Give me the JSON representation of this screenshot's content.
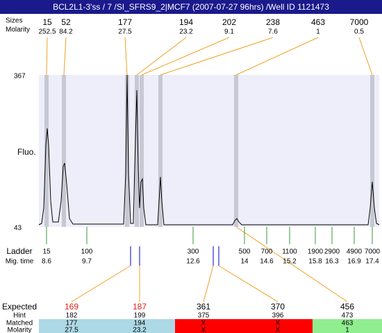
{
  "title": "BCL2L1-3'ss / 7 /SI_SFRS9_2|MCF7 (2007-07-27 96hrs) /Well ID 1121473",
  "top_rows": {
    "size_label": "Sizes",
    "molarity_label": "Molarity"
  },
  "peaks": [
    {
      "size": "15",
      "molarity": "252.5"
    },
    {
      "size": "52",
      "molarity": "84.2"
    },
    {
      "size": "177",
      "molarity": "27.5"
    },
    {
      "size": "194",
      "molarity": "23.2"
    },
    {
      "size": "202",
      "molarity": "9.1"
    },
    {
      "size": "238",
      "molarity": "7.6"
    },
    {
      "size": "463",
      "molarity": "1"
    },
    {
      "size": "7000",
      "molarity": "0.5"
    }
  ],
  "y_axis": {
    "label": "Fluo.",
    "top": "367",
    "bottom": "43"
  },
  "ladder": {
    "label": "Ladder",
    "time_label": "Mig. time",
    "entries": [
      {
        "size": "15",
        "time": "8.6"
      },
      {
        "size": "100",
        "time": "9.7"
      },
      {
        "size": "300",
        "time": "12.6"
      },
      {
        "size": "500",
        "time": "14"
      },
      {
        "size": "700",
        "time": "14.6"
      },
      {
        "size": "1100",
        "time": "15.2"
      },
      {
        "size": "1900",
        "time": "15.8"
      },
      {
        "size": "2900",
        "time": "16.3"
      },
      {
        "size": "4900",
        "time": "16.9"
      },
      {
        "size": "7000",
        "time": "17.4"
      }
    ]
  },
  "table": {
    "row_labels": [
      "Expected",
      "Hint",
      "Matched",
      "Molarity"
    ],
    "columns": [
      {
        "expected": "169",
        "hint": "182",
        "matched": "177",
        "molarity": "27.5",
        "expected_color": "#e02020",
        "color": "#add8e6"
      },
      {
        "expected": "187",
        "hint": "199",
        "matched": "194",
        "molarity": "23.2",
        "expected_color": "#e02020",
        "color": "#add8e6"
      },
      {
        "expected": "361",
        "hint": "375",
        "matched": "X",
        "molarity": "X",
        "expected_color": "#000000",
        "color": "#ff0000"
      },
      {
        "expected": "370",
        "hint": "396",
        "matched": "X",
        "molarity": "X",
        "expected_color": "#000000",
        "color": "#ff0000"
      },
      {
        "expected": "456",
        "hint": "473",
        "matched": "463",
        "molarity": "1",
        "expected_color": "#000000",
        "color": "#90ee90"
      }
    ]
  }
}
